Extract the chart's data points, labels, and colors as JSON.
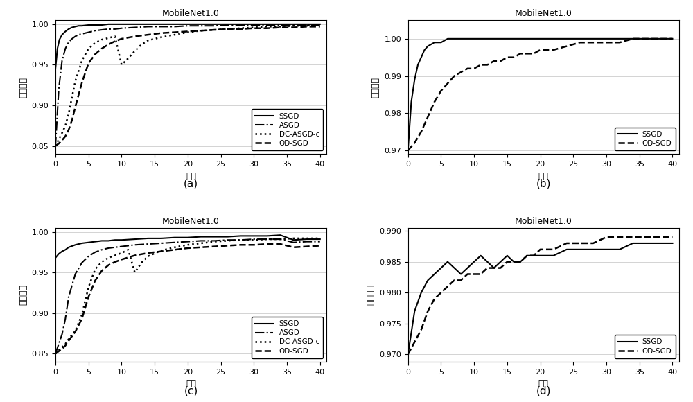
{
  "title": "MobileNet1.0",
  "xlabel": "轮数",
  "background": "#ffffff",
  "subplots": [
    {
      "label": "(a)",
      "ylabel": "训练精度",
      "ylim": [
        0.84,
        1.005
      ],
      "yticks": [
        0.85,
        0.9,
        0.95,
        1.0
      ],
      "xlim": [
        0,
        41
      ],
      "xticks": [
        0,
        5,
        10,
        15,
        20,
        25,
        30,
        35,
        40
      ],
      "legend_loc": "lower right",
      "series": [
        {
          "label": "SSGD",
          "style": "solid",
          "lw": 1.5,
          "x": [
            0,
            0.3,
            0.6,
            1,
            1.5,
            2,
            2.5,
            3,
            3.5,
            4,
            5,
            6,
            7,
            8,
            9,
            10,
            12,
            14,
            16,
            18,
            20,
            22,
            24,
            26,
            28,
            30,
            32,
            34,
            36,
            38,
            40
          ],
          "y": [
            0.945,
            0.97,
            0.981,
            0.987,
            0.991,
            0.994,
            0.996,
            0.997,
            0.998,
            0.998,
            0.999,
            0.999,
            0.999,
            1.0,
            1.0,
            1.0,
            1.0,
            1.0,
            1.0,
            1.0,
            1.0,
            1.0,
            1.0,
            1.0,
            1.0,
            1.0,
            1.0,
            1.0,
            1.0,
            1.0,
            1.0
          ]
        },
        {
          "label": "ASGD",
          "style": "dashdot",
          "lw": 1.5,
          "x": [
            0,
            0.5,
            1,
            1.5,
            2,
            2.5,
            3,
            3.5,
            4,
            5,
            6,
            7,
            8,
            9,
            10,
            12,
            14,
            16,
            18,
            20,
            22,
            24,
            26,
            28,
            30,
            32,
            34,
            36,
            38,
            40
          ],
          "y": [
            0.85,
            0.92,
            0.955,
            0.97,
            0.978,
            0.982,
            0.985,
            0.987,
            0.988,
            0.99,
            0.992,
            0.993,
            0.994,
            0.994,
            0.995,
            0.996,
            0.997,
            0.997,
            0.997,
            0.998,
            0.998,
            0.998,
            0.999,
            0.999,
            0.999,
            0.999,
            0.999,
            0.999,
            0.999,
            0.999
          ]
        },
        {
          "label": "DC-ASGD-c",
          "style": "dotted",
          "lw": 1.8,
          "x": [
            0,
            0.5,
            1,
            1.5,
            2,
            2.5,
            3,
            4,
            5,
            6,
            7,
            8,
            9,
            10,
            11,
            12,
            13,
            14,
            16,
            18,
            20,
            22,
            24,
            26,
            28,
            30,
            32,
            34,
            36,
            38,
            40
          ],
          "y": [
            0.85,
            0.858,
            0.866,
            0.875,
            0.89,
            0.91,
            0.93,
            0.955,
            0.97,
            0.977,
            0.981,
            0.983,
            0.985,
            0.95,
            0.958,
            0.967,
            0.975,
            0.98,
            0.984,
            0.987,
            0.99,
            0.992,
            0.993,
            0.994,
            0.995,
            0.996,
            0.997,
            0.997,
            0.998,
            0.998,
            0.999
          ]
        },
        {
          "label": "OD-SGD",
          "style": "dashed",
          "lw": 1.8,
          "x": [
            0,
            0.5,
            1,
            1.5,
            2,
            2.5,
            3,
            4,
            5,
            6,
            7,
            8,
            9,
            10,
            12,
            14,
            16,
            18,
            20,
            22,
            24,
            26,
            28,
            30,
            32,
            34,
            36,
            38,
            40
          ],
          "y": [
            0.85,
            0.853,
            0.857,
            0.862,
            0.87,
            0.882,
            0.898,
            0.928,
            0.952,
            0.963,
            0.97,
            0.975,
            0.979,
            0.982,
            0.985,
            0.987,
            0.989,
            0.99,
            0.991,
            0.992,
            0.993,
            0.994,
            0.994,
            0.995,
            0.995,
            0.996,
            0.996,
            0.997,
            0.997
          ]
        }
      ]
    },
    {
      "label": "(b)",
      "ylabel": "训练精度",
      "ylim": [
        0.969,
        1.005
      ],
      "yticks": [
        0.97,
        0.98,
        0.99,
        1.0
      ],
      "xlim": [
        0,
        41
      ],
      "xticks": [
        0,
        5,
        10,
        15,
        20,
        25,
        30,
        35,
        40
      ],
      "legend_loc": "lower right",
      "series": [
        {
          "label": "SSGD",
          "style": "solid",
          "lw": 1.5,
          "x": [
            0,
            0.5,
            1,
            1.5,
            2,
            2.5,
            3,
            4,
            5,
            6,
            7,
            8,
            9,
            10,
            12,
            14,
            16,
            18,
            20,
            22,
            24,
            26,
            28,
            30,
            32,
            34,
            36,
            38,
            40
          ],
          "y": [
            0.97,
            0.983,
            0.989,
            0.993,
            0.995,
            0.997,
            0.998,
            0.999,
            0.999,
            1.0,
            1.0,
            1.0,
            1.0,
            1.0,
            1.0,
            1.0,
            1.0,
            1.0,
            1.0,
            1.0,
            1.0,
            1.0,
            1.0,
            1.0,
            1.0,
            1.0,
            1.0,
            1.0,
            1.0
          ]
        },
        {
          "label": "OD-SGD",
          "style": "dashed",
          "lw": 1.8,
          "x": [
            0,
            1,
            2,
            3,
            4,
            5,
            6,
            7,
            8,
            9,
            10,
            11,
            12,
            13,
            14,
            15,
            16,
            17,
            18,
            19,
            20,
            22,
            24,
            26,
            28,
            30,
            32,
            34,
            36,
            38,
            40
          ],
          "y": [
            0.97,
            0.972,
            0.975,
            0.979,
            0.983,
            0.986,
            0.988,
            0.99,
            0.991,
            0.992,
            0.992,
            0.993,
            0.993,
            0.994,
            0.994,
            0.995,
            0.995,
            0.996,
            0.996,
            0.996,
            0.997,
            0.997,
            0.998,
            0.999,
            0.999,
            0.999,
            0.999,
            1.0,
            1.0,
            1.0,
            1.0
          ]
        }
      ]
    },
    {
      "label": "(c)",
      "ylabel": "测试精度",
      "ylim": [
        0.84,
        1.005
      ],
      "yticks": [
        0.85,
        0.9,
        0.95,
        1.0
      ],
      "xlim": [
        0,
        41
      ],
      "xticks": [
        0,
        5,
        10,
        15,
        20,
        25,
        30,
        35,
        40
      ],
      "legend_loc": "lower right",
      "series": [
        {
          "label": "SSGD",
          "style": "solid",
          "lw": 1.5,
          "x": [
            0,
            0.5,
            1,
            1.5,
            2,
            3,
            4,
            5,
            6,
            7,
            8,
            9,
            10,
            12,
            14,
            16,
            18,
            20,
            22,
            24,
            26,
            28,
            30,
            32,
            34,
            36,
            38,
            40
          ],
          "y": [
            0.968,
            0.973,
            0.976,
            0.978,
            0.981,
            0.984,
            0.986,
            0.987,
            0.988,
            0.989,
            0.989,
            0.99,
            0.99,
            0.991,
            0.992,
            0.992,
            0.993,
            0.993,
            0.994,
            0.994,
            0.994,
            0.995,
            0.995,
            0.995,
            0.996,
            0.99,
            0.991,
            0.991
          ]
        },
        {
          "label": "ASGD",
          "style": "dashdot",
          "lw": 1.5,
          "x": [
            0,
            0.5,
            1,
            1.5,
            2,
            3,
            4,
            5,
            6,
            7,
            8,
            9,
            10,
            12,
            14,
            16,
            18,
            20,
            22,
            24,
            26,
            28,
            30,
            32,
            34,
            36,
            38,
            40
          ],
          "y": [
            0.85,
            0.862,
            0.874,
            0.893,
            0.92,
            0.948,
            0.962,
            0.97,
            0.975,
            0.978,
            0.98,
            0.981,
            0.982,
            0.984,
            0.985,
            0.986,
            0.987,
            0.988,
            0.989,
            0.989,
            0.99,
            0.99,
            0.991,
            0.991,
            0.991,
            0.987,
            0.988,
            0.988
          ]
        },
        {
          "label": "DC-ASGD-c",
          "style": "dotted",
          "lw": 1.8,
          "x": [
            0,
            0.5,
            1,
            1.5,
            2,
            3,
            4,
            5,
            6,
            7,
            8,
            9,
            10,
            11,
            12,
            13,
            14,
            16,
            18,
            20,
            22,
            24,
            26,
            28,
            30,
            32,
            34,
            36,
            38,
            40
          ],
          "y": [
            0.85,
            0.854,
            0.858,
            0.862,
            0.868,
            0.878,
            0.898,
            0.932,
            0.954,
            0.963,
            0.968,
            0.971,
            0.974,
            0.978,
            0.95,
            0.962,
            0.97,
            0.977,
            0.981,
            0.984,
            0.986,
            0.988,
            0.989,
            0.99,
            0.99,
            0.991,
            0.991,
            0.992,
            0.992,
            0.992
          ]
        },
        {
          "label": "OD-SGD",
          "style": "dashed",
          "lw": 1.8,
          "x": [
            0,
            0.5,
            1,
            1.5,
            2,
            3,
            4,
            5,
            6,
            7,
            8,
            9,
            10,
            12,
            14,
            16,
            18,
            20,
            22,
            24,
            26,
            28,
            30,
            32,
            34,
            36,
            38,
            40
          ],
          "y": [
            0.85,
            0.853,
            0.856,
            0.86,
            0.866,
            0.877,
            0.893,
            0.92,
            0.94,
            0.952,
            0.959,
            0.963,
            0.966,
            0.971,
            0.974,
            0.976,
            0.978,
            0.98,
            0.981,
            0.982,
            0.983,
            0.984,
            0.984,
            0.985,
            0.985,
            0.981,
            0.982,
            0.983
          ]
        }
      ]
    },
    {
      "label": "(d)",
      "ylabel": "测试精度",
      "ylim": [
        0.9688,
        0.9905
      ],
      "yticks": [
        0.97,
        0.975,
        0.98,
        0.985,
        0.99
      ],
      "yticklabels": [
        "0.970",
        "0.975",
        "0.980",
        "0.985",
        "0.990"
      ],
      "ytop_label": "0.990",
      "xlim": [
        0,
        41
      ],
      "xticks": [
        0,
        5,
        10,
        15,
        20,
        25,
        30,
        35,
        40
      ],
      "legend_loc": "lower right",
      "series": [
        {
          "label": "SSGD",
          "style": "solid",
          "lw": 1.5,
          "x": [
            0,
            1,
            2,
            3,
            4,
            5,
            6,
            7,
            8,
            9,
            10,
            11,
            12,
            13,
            14,
            15,
            16,
            17,
            18,
            19,
            20,
            22,
            24,
            26,
            28,
            30,
            32,
            34,
            36,
            38,
            40
          ],
          "y": [
            0.97,
            0.977,
            0.98,
            0.982,
            0.983,
            0.984,
            0.985,
            0.984,
            0.983,
            0.984,
            0.985,
            0.986,
            0.985,
            0.984,
            0.985,
            0.986,
            0.985,
            0.985,
            0.986,
            0.986,
            0.986,
            0.986,
            0.987,
            0.987,
            0.987,
            0.987,
            0.987,
            0.988,
            0.988,
            0.988,
            0.988
          ]
        },
        {
          "label": "OD-SGD",
          "style": "dashed",
          "lw": 1.8,
          "x": [
            0,
            1,
            2,
            3,
            4,
            5,
            6,
            7,
            8,
            9,
            10,
            11,
            12,
            13,
            14,
            15,
            16,
            17,
            18,
            19,
            20,
            22,
            24,
            26,
            28,
            30,
            32,
            34,
            36,
            38,
            40
          ],
          "y": [
            0.97,
            0.972,
            0.974,
            0.977,
            0.979,
            0.98,
            0.981,
            0.982,
            0.982,
            0.983,
            0.983,
            0.983,
            0.984,
            0.984,
            0.984,
            0.985,
            0.985,
            0.985,
            0.986,
            0.986,
            0.987,
            0.987,
            0.988,
            0.988,
            0.988,
            0.989,
            0.989,
            0.989,
            0.989,
            0.989,
            0.989
          ]
        }
      ]
    }
  ]
}
